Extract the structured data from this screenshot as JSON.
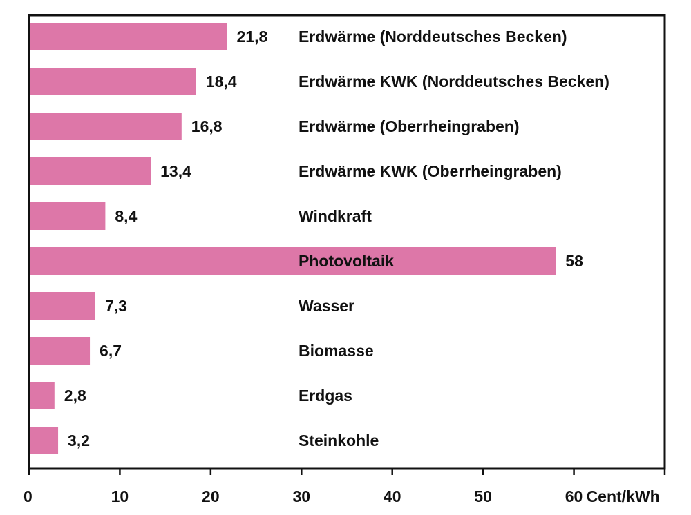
{
  "chart_data": {
    "type": "bar",
    "orientation": "horizontal",
    "categories": [
      "Erdwärme (Norddeutsches Becken)",
      "Erdwärme KWK (Norddeutsches Becken)",
      "Erdwärme (Oberrheingraben)",
      "Erdwärme KWK (Oberrheingraben)",
      "Windkraft",
      "Photovoltaik",
      "Wasser",
      "Biomasse",
      "Erdgas",
      "Steinkohle"
    ],
    "values": [
      21.8,
      18.4,
      16.8,
      13.4,
      8.4,
      58,
      7.3,
      6.7,
      2.8,
      3.2
    ],
    "value_labels": [
      "21,8",
      "18,4",
      "16,8",
      "13,4",
      "8,4",
      "58",
      "7,3",
      "6,7",
      "2,8",
      "3,2"
    ],
    "xticks": [
      "0",
      "10",
      "20",
      "30",
      "40",
      "50",
      "60"
    ],
    "xlabel": "Cent/kWh",
    "xlim": [
      0,
      70
    ],
    "grid": false,
    "bar_color": "#dd77a8"
  }
}
